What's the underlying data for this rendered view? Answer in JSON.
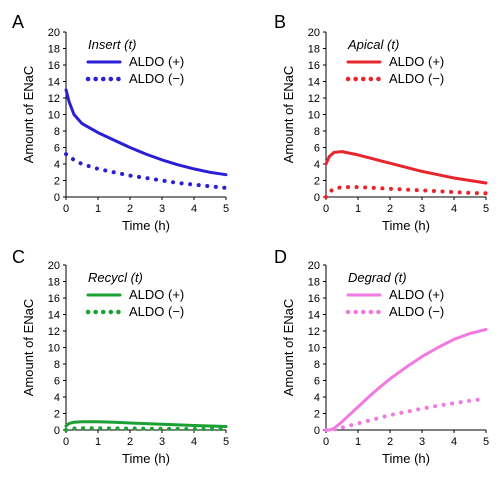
{
  "chart_data": [
    {
      "panel": "A",
      "type": "line",
      "title": "Insert (t)",
      "xlabel": "Time (h)",
      "ylabel": "Amount of ENaC",
      "xlim": [
        0,
        5
      ],
      "ylim": [
        0,
        20
      ],
      "xticks": [
        "0",
        "1",
        "2",
        "3",
        "4",
        "5"
      ],
      "yticks": [
        "0",
        "2",
        "4",
        "6",
        "8",
        "10",
        "12",
        "14",
        "16",
        "18",
        "20"
      ],
      "x": [
        0,
        0.1,
        0.25,
        0.5,
        1,
        1.5,
        2,
        2.5,
        3,
        3.5,
        4,
        4.5,
        5
      ],
      "series": [
        {
          "name": "ALDO (+)",
          "style": "solid",
          "color": "#2b1fd6",
          "values": [
            13.0,
            11.5,
            10.0,
            8.9,
            7.8,
            6.9,
            6.0,
            5.2,
            4.5,
            3.9,
            3.4,
            3.0,
            2.7
          ]
        },
        {
          "name": "ALDO (−)",
          "style": "dotted",
          "color": "#2b1fd6",
          "values": [
            5.2,
            4.9,
            4.5,
            4.0,
            3.4,
            3.0,
            2.6,
            2.3,
            2.0,
            1.7,
            1.5,
            1.3,
            1.1
          ]
        }
      ],
      "legend": "top-right",
      "grid": false
    },
    {
      "panel": "B",
      "type": "line",
      "title": "Apical (t)",
      "xlabel": "Time (h)",
      "ylabel": "Amount of ENaC",
      "xlim": [
        0,
        5
      ],
      "ylim": [
        0,
        20
      ],
      "xticks": [
        "0",
        "1",
        "2",
        "3",
        "4",
        "5"
      ],
      "yticks": [
        "0",
        "2",
        "4",
        "6",
        "8",
        "10",
        "12",
        "14",
        "16",
        "18",
        "20"
      ],
      "x": [
        0,
        0.1,
        0.25,
        0.5,
        1,
        1.5,
        2,
        2.5,
        3,
        3.5,
        4,
        4.5,
        5
      ],
      "series": [
        {
          "name": "ALDO (+)",
          "style": "solid",
          "color": "#e8252c",
          "values": [
            4.0,
            4.9,
            5.4,
            5.5,
            5.1,
            4.6,
            4.1,
            3.6,
            3.1,
            2.7,
            2.3,
            2.0,
            1.7
          ]
        },
        {
          "name": "ALDO (−)",
          "style": "dotted",
          "color": "#e8252c",
          "values": [
            0.0,
            0.6,
            1.0,
            1.2,
            1.2,
            1.1,
            1.0,
            0.9,
            0.8,
            0.7,
            0.6,
            0.5,
            0.45
          ]
        }
      ],
      "legend": "top-right",
      "grid": false
    },
    {
      "panel": "C",
      "type": "line",
      "title": "Recycl (t)",
      "xlabel": "Time (h)",
      "ylabel": "Amount of ENaC",
      "xlim": [
        0,
        5
      ],
      "ylim": [
        0,
        20
      ],
      "xticks": [
        "0",
        "1",
        "2",
        "3",
        "4",
        "5"
      ],
      "yticks": [
        "0",
        "2",
        "4",
        "6",
        "8",
        "10",
        "12",
        "14",
        "16",
        "18",
        "20"
      ],
      "x": [
        0,
        0.1,
        0.25,
        0.5,
        1,
        1.5,
        2,
        2.5,
        3,
        3.5,
        4,
        4.5,
        5
      ],
      "series": [
        {
          "name": "ALDO (+)",
          "style": "solid",
          "color": "#1aa033",
          "values": [
            0.5,
            0.8,
            0.95,
            1.0,
            1.0,
            0.95,
            0.85,
            0.78,
            0.7,
            0.62,
            0.55,
            0.48,
            0.42
          ]
        },
        {
          "name": "ALDO (−)",
          "style": "dotted",
          "color": "#1aa033",
          "values": [
            0.0,
            0.1,
            0.18,
            0.22,
            0.22,
            0.2,
            0.18,
            0.16,
            0.15,
            0.13,
            0.12,
            0.11,
            0.1
          ]
        }
      ],
      "legend": "top-right",
      "grid": false
    },
    {
      "panel": "D",
      "type": "line",
      "title": "Degrad (t)",
      "xlabel": "Time (h)",
      "ylabel": "Amount of ENaC",
      "xlim": [
        0,
        5
      ],
      "ylim": [
        0,
        20
      ],
      "xticks": [
        "0",
        "1",
        "2",
        "3",
        "4",
        "5"
      ],
      "yticks": [
        "0",
        "2",
        "4",
        "6",
        "8",
        "10",
        "12",
        "14",
        "16",
        "18",
        "20"
      ],
      "x": [
        0,
        0.1,
        0.25,
        0.5,
        1,
        1.5,
        2,
        2.5,
        3,
        3.5,
        4,
        4.5,
        5
      ],
      "series": [
        {
          "name": "ALDO (+)",
          "style": "solid",
          "color": "#f07ae0",
          "values": [
            0.0,
            0.0,
            0.2,
            1.0,
            2.8,
            4.6,
            6.2,
            7.6,
            8.9,
            10.0,
            11.0,
            11.7,
            12.2
          ]
        },
        {
          "name": "ALDO (−)",
          "style": "dotted",
          "color": "#f07ae0",
          "values": [
            0.0,
            0.0,
            0.05,
            0.3,
            0.8,
            1.3,
            1.8,
            2.2,
            2.6,
            2.95,
            3.25,
            3.55,
            3.8
          ]
        }
      ],
      "legend": "top-right",
      "grid": false
    }
  ]
}
